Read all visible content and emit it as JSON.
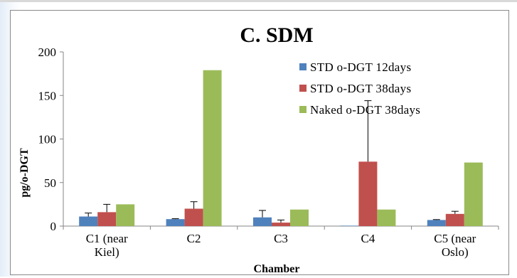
{
  "chart_data": {
    "type": "bar",
    "title": "C. SDM",
    "xlabel": "Chamber",
    "ylabel": "pg/o-DGT",
    "ylim": [
      0,
      200
    ],
    "yticks": [
      0,
      50,
      100,
      150,
      200
    ],
    "grid": false,
    "legend_position": "top-right",
    "categories": [
      [
        "C1 (near",
        "Kiel)"
      ],
      [
        "C2"
      ],
      [
        "C3"
      ],
      [
        "C4"
      ],
      [
        "C5 (near",
        "Oslo)"
      ]
    ],
    "series": [
      {
        "name": "STD o-DGT 12days",
        "color": "#4f81bd",
        "values": [
          11,
          8,
          10,
          0.5,
          7
        ],
        "errors": [
          4,
          0.5,
          8,
          0,
          0.5
        ]
      },
      {
        "name": "STD o-DGT 38days",
        "color": "#c0504d",
        "values": [
          16,
          20,
          4,
          74,
          14
        ],
        "errors": [
          9,
          8,
          3,
          70,
          3
        ]
      },
      {
        "name": "Naked o-DGT 38days",
        "color": "#9bbb59",
        "values": [
          25,
          179,
          19,
          19,
          73
        ],
        "errors": [
          0,
          0,
          0,
          0,
          0
        ]
      }
    ]
  }
}
